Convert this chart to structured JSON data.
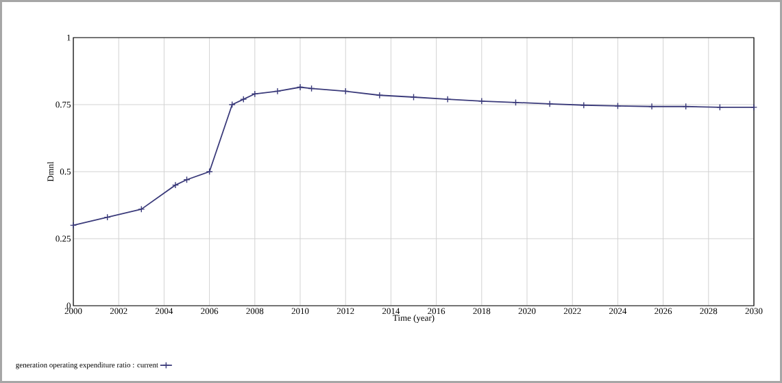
{
  "chart_data": {
    "type": "line",
    "xlabel": "Time (year)",
    "ylabel": "Dmnl",
    "x": [
      2000,
      2001.5,
      2003,
      2004.5,
      2005,
      2006,
      2007,
      2007.5,
      2008,
      2009,
      2010,
      2010.5,
      2012,
      2013.5,
      2015,
      2016.5,
      2018,
      2019.5,
      2021,
      2022.5,
      2024,
      2025.5,
      2027,
      2028.5,
      2030
    ],
    "series": [
      {
        "name": "generation operating expenditure ratio : current",
        "color": "#3a3a7a",
        "values": [
          0.3,
          0.33,
          0.36,
          0.45,
          0.47,
          0.5,
          0.75,
          0.77,
          0.79,
          0.8,
          0.815,
          0.81,
          0.8,
          0.785,
          0.778,
          0.77,
          0.763,
          0.758,
          0.753,
          0.748,
          0.745,
          0.743,
          0.743,
          0.74,
          0.74
        ]
      }
    ],
    "xlim": [
      2000,
      2030
    ],
    "ylim": [
      0,
      1
    ],
    "xticks": [
      2000,
      2002,
      2004,
      2006,
      2008,
      2010,
      2012,
      2014,
      2016,
      2018,
      2020,
      2022,
      2024,
      2026,
      2028,
      2030
    ],
    "yticks": [
      0,
      0.25,
      0.5,
      0.75,
      1
    ],
    "grid": true,
    "legend": "bottom",
    "marker": "cross",
    "line_style": "solid"
  }
}
